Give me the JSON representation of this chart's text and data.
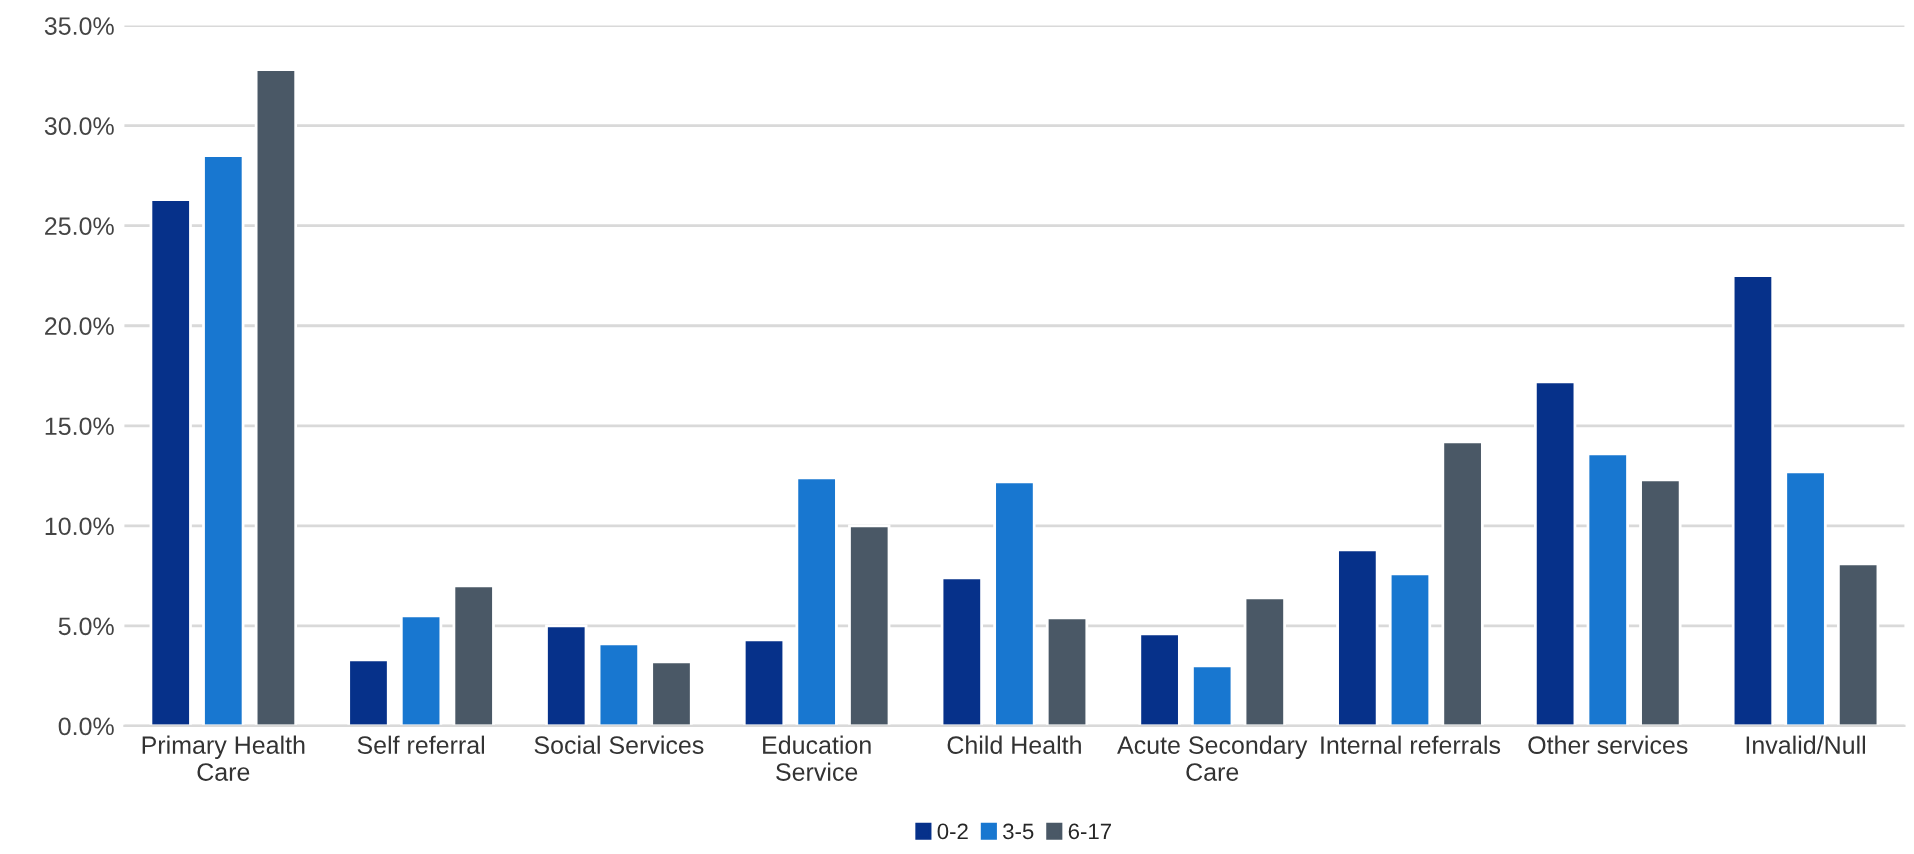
{
  "chart_data": {
    "type": "bar",
    "categories": [
      "Primary Health\nCare",
      "Self referral",
      "Social Services",
      "Education\nService",
      "Child Health",
      "Acute Secondary\nCare",
      "Internal referrals",
      "Other services",
      "Invalid/Null"
    ],
    "series": [
      {
        "name": "0-2",
        "color": "#06318a",
        "values": [
          26.3,
          3.3,
          5.0,
          4.3,
          7.4,
          4.6,
          8.8,
          17.2,
          22.5
        ]
      },
      {
        "name": "3-5",
        "color": "#1877d0",
        "values": [
          28.5,
          5.5,
          4.1,
          12.4,
          12.2,
          3.0,
          7.6,
          13.6,
          12.7
        ]
      },
      {
        "name": "6-17",
        "color": "#4a5866",
        "values": [
          32.8,
          7.0,
          3.2,
          10.0,
          5.4,
          6.4,
          14.2,
          12.3,
          8.1
        ]
      }
    ],
    "ylim": [
      0,
      35
    ],
    "yticks": [
      {
        "value": 0,
        "label": "0.0%"
      },
      {
        "value": 5,
        "label": "5.0%"
      },
      {
        "value": 10,
        "label": "10.0%"
      },
      {
        "value": 15,
        "label": "15.0%"
      },
      {
        "value": 20,
        "label": "20.0%"
      },
      {
        "value": 25,
        "label": "25.0%"
      },
      {
        "value": 30,
        "label": "30.0%"
      },
      {
        "value": 35,
        "label": "35.0%"
      }
    ],
    "grid": "y",
    "legend": "bottom"
  }
}
